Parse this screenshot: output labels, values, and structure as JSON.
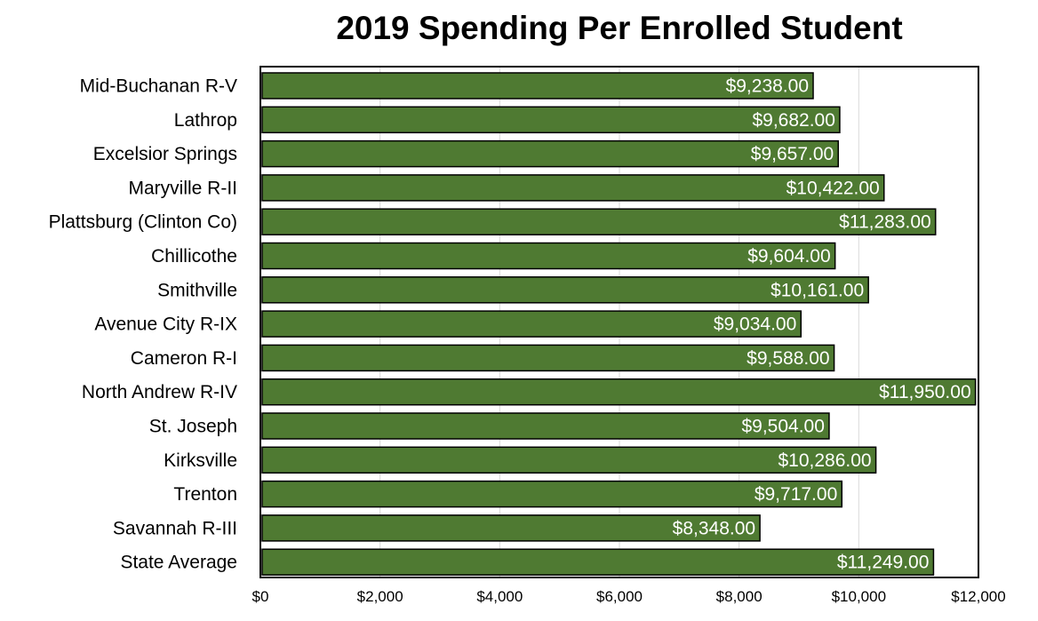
{
  "chart_data": {
    "type": "bar",
    "orientation": "horizontal",
    "title": "2019 Spending Per Enrolled Student",
    "xlabel": "",
    "ylabel": "",
    "xlim": [
      0,
      12000
    ],
    "x_ticks": [
      0,
      2000,
      4000,
      6000,
      8000,
      10000,
      12000
    ],
    "x_tick_labels": [
      "$0",
      "$2,000",
      "$4,000",
      "$6,000",
      "$8,000",
      "$10,000",
      "$12,000"
    ],
    "grid": "vertical",
    "categories": [
      "Mid-Buchanan R-V",
      "Lathrop",
      "Excelsior Springs",
      "Maryville R-II",
      "Plattsburg (Clinton Co)",
      "Chillicothe",
      "Smithville",
      "Avenue City R-IX",
      "Cameron R-I",
      "North Andrew R-IV",
      "St. Joseph",
      "Kirksville",
      "Trenton",
      "Savannah R-III",
      "State Average"
    ],
    "values": [
      9238,
      9682,
      9657,
      10422,
      11283,
      9604,
      10161,
      9034,
      9588,
      11950,
      9504,
      10286,
      9717,
      8348,
      11249
    ],
    "data_labels": [
      "$9,238.00",
      "$9,682.00",
      "$9,657.00",
      "$10,422.00",
      "$11,283.00",
      "$9,604.00",
      "$10,161.00",
      "$9,034.00",
      "$9,588.00",
      "$11,950.00",
      "$9,504.00",
      "$10,286.00",
      "$9,717.00",
      "$8,348.00",
      "$11,249.00"
    ],
    "colors": {
      "bar_fill": "#4f7a32",
      "bar_stroke": "#000000",
      "grid": "#d9d9d9",
      "frame": "#000000"
    }
  }
}
